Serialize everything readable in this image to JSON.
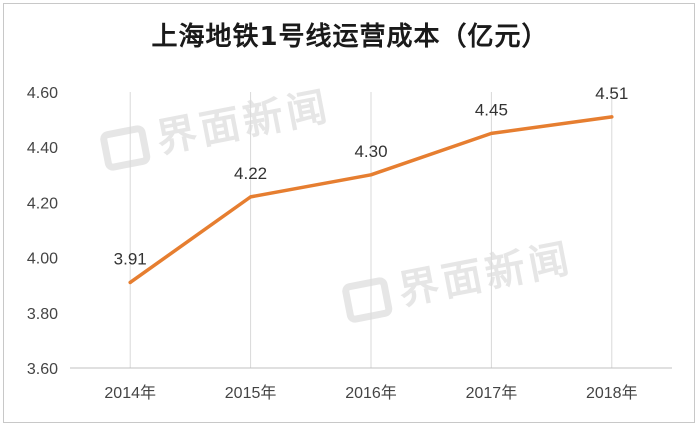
{
  "chart_data": {
    "type": "line",
    "title": "上海地铁1号线运营成本（亿元）",
    "categories": [
      "2014年",
      "2015年",
      "2016年",
      "2017年",
      "2018年"
    ],
    "series": [
      {
        "values": [
          3.91,
          4.22,
          4.3,
          4.45,
          4.51
        ],
        "color": "#e67e30"
      }
    ],
    "data_labels": [
      "3.91",
      "4.22",
      "4.30",
      "4.45",
      "4.51"
    ],
    "yticks": [
      "3.60",
      "3.80",
      "4.00",
      "4.20",
      "4.40",
      "4.60"
    ],
    "ylim": [
      3.6,
      4.6
    ],
    "grid": "vertical",
    "legend": "none"
  },
  "watermark": {
    "text": "界面新闻",
    "color": "#e6e6e6"
  }
}
